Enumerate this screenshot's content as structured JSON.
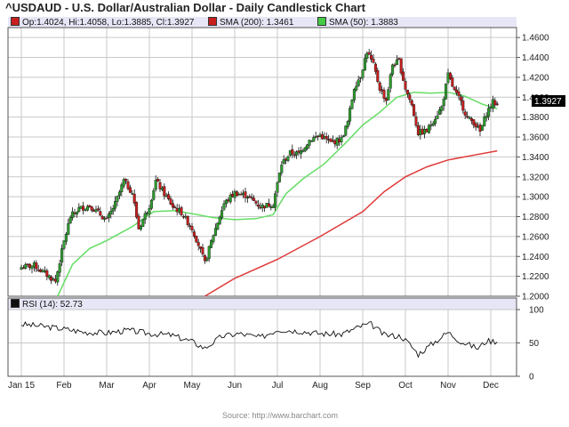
{
  "header": {
    "title": "^USDAUD - U.S. Dollar/Australian Dollar - Daily Candlestick Chart"
  },
  "legend": {
    "ohlc": "Op:1.4024, Hi:1.4058, Lo:1.3885, Cl:1.3927",
    "sma200": "SMA (200): 1.3461",
    "sma50": "SMA (50): 1.3883"
  },
  "rsi_panel": {
    "label": "RSI (14): 52.73"
  },
  "last_price_label": "1.3927",
  "source": "Source: http://www.barchart.com",
  "colors": {
    "up": "#2e9e2e",
    "down": "#c81e1e",
    "sma50": "#66dd66",
    "sma200": "#e03a3a",
    "grid": "#c8c8c8",
    "header_bg": "#e6e6f6"
  },
  "chart_data": [
    {
      "type": "candlestick",
      "title": "^USDAUD - U.S. Dollar/Australian Dollar - Daily Candlestick Chart",
      "x_tick_labels": [
        "Jan 15",
        "Feb",
        "Mar",
        "Apr",
        "May",
        "Jun",
        "Jul",
        "Aug",
        "Sep",
        "Oct",
        "Nov",
        "Dec"
      ],
      "y_tick_labels": [
        "1.2000",
        "1.2200",
        "1.2400",
        "1.2600",
        "1.2800",
        "1.3000",
        "1.3200",
        "1.3400",
        "1.3600",
        "1.3800",
        "1.4000",
        "1.4200",
        "1.4400",
        "1.4600"
      ],
      "ylim": [
        1.2,
        1.47
      ],
      "grid": true,
      "last_value": 1.3927,
      "x_range": [
        0,
        11.15
      ],
      "close": [
        [
          0.0,
          1.229
        ],
        [
          0.3,
          1.231
        ],
        [
          0.55,
          1.223
        ],
        [
          0.8,
          1.215
        ],
        [
          1.0,
          1.255
        ],
        [
          1.15,
          1.28
        ],
        [
          1.35,
          1.288
        ],
        [
          1.6,
          1.291
        ],
        [
          1.8,
          1.284
        ],
        [
          2.0,
          1.276
        ],
        [
          2.2,
          1.293
        ],
        [
          2.4,
          1.316
        ],
        [
          2.6,
          1.304
        ],
        [
          2.75,
          1.268
        ],
        [
          3.0,
          1.291
        ],
        [
          3.15,
          1.316
        ],
        [
          3.35,
          1.303
        ],
        [
          3.55,
          1.29
        ],
        [
          3.75,
          1.284
        ],
        [
          4.0,
          1.268
        ],
        [
          4.15,
          1.252
        ],
        [
          4.3,
          1.233
        ],
        [
          4.5,
          1.262
        ],
        [
          4.75,
          1.293
        ],
        [
          5.0,
          1.304
        ],
        [
          5.3,
          1.301
        ],
        [
          5.6,
          1.29
        ],
        [
          5.9,
          1.293
        ],
        [
          6.1,
          1.333
        ],
        [
          6.3,
          1.344
        ],
        [
          6.5,
          1.343
        ],
        [
          6.75,
          1.357
        ],
        [
          7.0,
          1.362
        ],
        [
          7.25,
          1.354
        ],
        [
          7.5,
          1.358
        ],
        [
          7.65,
          1.375
        ],
        [
          7.8,
          1.41
        ],
        [
          7.95,
          1.422
        ],
        [
          8.1,
          1.446
        ],
        [
          8.25,
          1.432
        ],
        [
          8.4,
          1.409
        ],
        [
          8.55,
          1.397
        ],
        [
          8.7,
          1.433
        ],
        [
          8.85,
          1.436
        ],
        [
          9.0,
          1.409
        ],
        [
          9.15,
          1.392
        ],
        [
          9.3,
          1.364
        ],
        [
          9.5,
          1.366
        ],
        [
          9.7,
          1.38
        ],
        [
          9.85,
          1.39
        ],
        [
          10.0,
          1.422
        ],
        [
          10.15,
          1.406
        ],
        [
          10.3,
          1.395
        ],
        [
          10.45,
          1.379
        ],
        [
          10.6,
          1.375
        ],
        [
          10.75,
          1.365
        ],
        [
          10.9,
          1.384
        ],
        [
          11.05,
          1.395
        ],
        [
          11.15,
          1.3927
        ]
      ],
      "series": [
        {
          "name": "SMA (200): 1.3461",
          "color": "#e03a3a",
          "points": [
            [
              4.3,
              1.2
            ],
            [
              5.0,
              1.218
            ],
            [
              6.0,
              1.237
            ],
            [
              7.0,
              1.26
            ],
            [
              8.0,
              1.285
            ],
            [
              8.5,
              1.305
            ],
            [
              9.0,
              1.32
            ],
            [
              9.5,
              1.33
            ],
            [
              10.0,
              1.337
            ],
            [
              10.5,
              1.341
            ],
            [
              11.15,
              1.3461
            ]
          ]
        },
        {
          "name": "SMA (50): 1.3883",
          "color": "#66dd66",
          "points": [
            [
              0.85,
              1.2
            ],
            [
              1.2,
              1.232
            ],
            [
              1.6,
              1.248
            ],
            [
              2.0,
              1.256
            ],
            [
              2.6,
              1.27
            ],
            [
              3.1,
              1.285
            ],
            [
              3.6,
              1.286
            ],
            [
              4.0,
              1.283
            ],
            [
              4.5,
              1.279
            ],
            [
              5.0,
              1.277
            ],
            [
              5.5,
              1.278
            ],
            [
              5.9,
              1.282
            ],
            [
              6.2,
              1.303
            ],
            [
              6.6,
              1.318
            ],
            [
              7.1,
              1.333
            ],
            [
              7.6,
              1.354
            ],
            [
              8.0,
              1.372
            ],
            [
              8.4,
              1.385
            ],
            [
              8.8,
              1.4
            ],
            [
              9.2,
              1.405
            ],
            [
              9.6,
              1.404
            ],
            [
              10.0,
              1.405
            ],
            [
              10.4,
              1.401
            ],
            [
              10.8,
              1.393
            ],
            [
              11.15,
              1.3883
            ]
          ]
        }
      ]
    },
    {
      "type": "line",
      "title": "RSI (14): 52.73",
      "x_tick_labels": [
        "Jan 15",
        "Feb",
        "Mar",
        "Apr",
        "May",
        "Jun",
        "Jul",
        "Aug",
        "Sep",
        "Oct",
        "Nov",
        "Dec"
      ],
      "y_tick_labels": [
        "0",
        "50",
        "100"
      ],
      "ylim": [
        0,
        100
      ],
      "grid": true,
      "series": [
        {
          "name": "RSI (14): 52.73",
          "points": [
            [
              0.0,
              78
            ],
            [
              0.5,
              75
            ],
            [
              1.0,
              71
            ],
            [
              1.5,
              66
            ],
            [
              2.0,
              65
            ],
            [
              2.5,
              69
            ],
            [
              3.0,
              64
            ],
            [
              3.5,
              62
            ],
            [
              4.0,
              52
            ],
            [
              4.3,
              42
            ],
            [
              4.7,
              60
            ],
            [
              5.1,
              64
            ],
            [
              5.6,
              58
            ],
            [
              6.0,
              70
            ],
            [
              6.5,
              68
            ],
            [
              7.0,
              64
            ],
            [
              7.5,
              63
            ],
            [
              8.0,
              76
            ],
            [
              8.2,
              78
            ],
            [
              8.5,
              62
            ],
            [
              8.9,
              60
            ],
            [
              9.1,
              48
            ],
            [
              9.3,
              33
            ],
            [
              9.7,
              52
            ],
            [
              10.0,
              66
            ],
            [
              10.3,
              52
            ],
            [
              10.7,
              42
            ],
            [
              10.9,
              53
            ],
            [
              11.15,
              52.73
            ]
          ]
        }
      ]
    }
  ]
}
